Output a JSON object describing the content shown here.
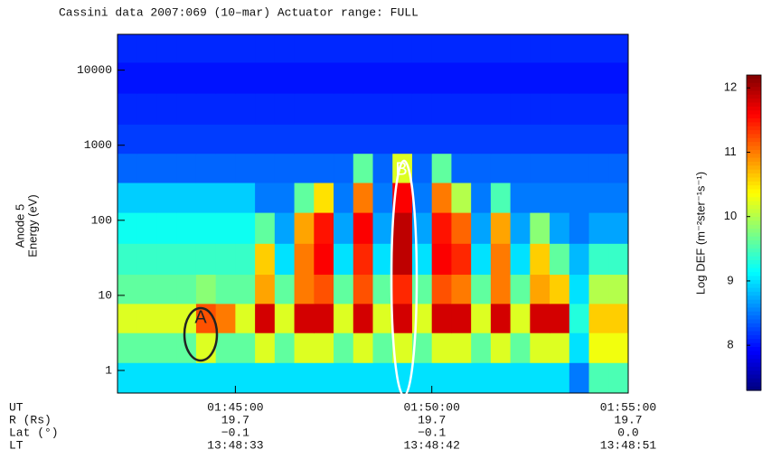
{
  "chart_data": {
    "type": "heatmap",
    "title": "Cassini data 2007:069 (10–mar)  Actuator range: FULL",
    "y_label": [
      "Anode 5",
      "Energy (eV)"
    ],
    "colorbar_label": "Log DEF (m⁻²ster⁻¹s⁻¹)",
    "log_y": true,
    "xlim": [
      "01:42:00",
      "01:55:00"
    ],
    "xticks": [
      "01:45:00",
      "01:50:00",
      "01:55:00"
    ],
    "ylim": [
      0.5,
      30000
    ],
    "yticks": [
      1,
      10,
      100,
      1000,
      10000
    ],
    "zlim": [
      7.3,
      12.2
    ],
    "zticks": [
      8,
      9,
      10,
      11,
      12
    ],
    "x": [
      "01:42:15",
      "01:42:45",
      "01:43:15",
      "01:43:45",
      "01:44:15",
      "01:44:45",
      "01:45:15",
      "01:45:45",
      "01:46:15",
      "01:46:45",
      "01:47:15",
      "01:47:45",
      "01:48:15",
      "01:48:45",
      "01:49:15",
      "01:49:45",
      "01:50:15",
      "01:50:45",
      "01:51:15",
      "01:51:45",
      "01:52:15",
      "01:52:45",
      "01:53:15",
      "01:53:45",
      "01:54:15",
      "01:54:45"
    ],
    "y": [
      0.8,
      2,
      5,
      12,
      30,
      80,
      200,
      500,
      1200,
      3000,
      8000,
      20000
    ],
    "values": [
      [
        9.0,
        9.0,
        9.0,
        9.0,
        9.0,
        9.0,
        9.0,
        9.0,
        9.0,
        9.0,
        9.0,
        9.0,
        9.0,
        9.0,
        9.0,
        9.0,
        9.0,
        9.0,
        9.0,
        9.0,
        9.0,
        9.0,
        9.0,
        8.5,
        9.5,
        9.5
      ],
      [
        9.6,
        9.6,
        9.6,
        9.6,
        10.2,
        9.6,
        9.6,
        10.2,
        9.6,
        10.2,
        10.2,
        9.6,
        10.2,
        9.6,
        10.2,
        9.6,
        10.2,
        10.2,
        9.6,
        10.2,
        9.6,
        10.2,
        10.2,
        9.0,
        10.3,
        10.3
      ],
      [
        10.2,
        10.2,
        10.2,
        10.2,
        11.2,
        11.0,
        10.2,
        11.8,
        10.2,
        11.8,
        11.8,
        10.2,
        11.8,
        10.2,
        11.8,
        10.2,
        11.8,
        11.8,
        10.2,
        11.8,
        10.2,
        11.8,
        11.8,
        9.3,
        10.6,
        10.6
      ],
      [
        9.6,
        9.6,
        9.6,
        9.6,
        9.8,
        9.6,
        9.6,
        10.8,
        9.6,
        11.0,
        11.2,
        9.6,
        11.2,
        9.6,
        11.4,
        9.6,
        11.2,
        11.0,
        9.6,
        11.0,
        9.6,
        10.8,
        10.6,
        9.0,
        10.0,
        10.0
      ],
      [
        9.4,
        9.4,
        9.4,
        9.4,
        9.4,
        9.4,
        9.4,
        10.6,
        9.0,
        11.0,
        11.6,
        9.0,
        11.4,
        9.0,
        11.9,
        9.0,
        11.6,
        11.4,
        9.0,
        11.0,
        9.0,
        10.6,
        9.6,
        8.8,
        9.4,
        9.4
      ],
      [
        9.2,
        9.2,
        9.2,
        9.2,
        9.2,
        9.2,
        9.2,
        9.6,
        8.7,
        10.8,
        11.5,
        8.7,
        11.6,
        8.7,
        11.9,
        8.7,
        11.5,
        11.1,
        8.7,
        10.8,
        8.7,
        9.8,
        8.7,
        8.5,
        8.7,
        8.7
      ],
      [
        8.9,
        8.9,
        8.9,
        8.9,
        8.9,
        8.9,
        8.9,
        8.5,
        8.5,
        9.6,
        10.5,
        8.5,
        11.0,
        8.5,
        11.6,
        8.5,
        11.0,
        10.0,
        8.5,
        9.5,
        8.5,
        8.5,
        8.5,
        8.5,
        8.5,
        8.5
      ],
      [
        8.4,
        8.4,
        8.4,
        8.4,
        8.4,
        8.4,
        8.4,
        8.4,
        8.4,
        8.4,
        8.4,
        8.4,
        9.6,
        8.4,
        10.2,
        8.4,
        9.6,
        8.4,
        8.4,
        8.4,
        8.4,
        8.4,
        8.4,
        8.4,
        8.4,
        8.4
      ],
      [
        8.2,
        8.2,
        8.2,
        8.2,
        8.2,
        8.2,
        8.2,
        8.2,
        8.2,
        8.2,
        8.2,
        8.2,
        8.2,
        8.2,
        8.2,
        8.2,
        8.2,
        8.2,
        8.2,
        8.2,
        8.2,
        8.2,
        8.2,
        8.2,
        8.2,
        8.2
      ],
      [
        8.1,
        8.1,
        8.1,
        8.1,
        8.1,
        8.1,
        8.1,
        8.1,
        8.1,
        8.1,
        8.1,
        8.1,
        8.1,
        8.1,
        8.1,
        8.1,
        8.1,
        8.1,
        8.1,
        8.1,
        8.1,
        8.1,
        8.1,
        8.1,
        8.1,
        8.1
      ],
      [
        8.0,
        8.0,
        8.0,
        8.0,
        8.0,
        8.0,
        8.0,
        8.0,
        8.0,
        8.0,
        8.0,
        8.0,
        8.0,
        8.0,
        8.0,
        8.0,
        8.0,
        8.0,
        8.0,
        8.0,
        8.0,
        8.0,
        8.0,
        8.0,
        8.0,
        8.0
      ],
      [
        8.1,
        8.1,
        8.1,
        8.1,
        8.1,
        8.1,
        8.1,
        8.1,
        8.1,
        8.1,
        8.1,
        8.1,
        8.1,
        8.1,
        8.1,
        8.1,
        8.1,
        8.1,
        8.1,
        8.1,
        8.1,
        8.1,
        8.1,
        8.1,
        8.1,
        8.1
      ]
    ],
    "annotations": [
      {
        "text": "A",
        "color": "#222222"
      },
      {
        "text": "B",
        "color": "#ffffff"
      }
    ],
    "ephemeris": {
      "labels": [
        "UT",
        "R (Rs)",
        "Lat (°)",
        "LT"
      ],
      "rows": [
        [
          "19.7",
          "19.7",
          "19.7"
        ],
        [
          "−0.1",
          "−0.1",
          "0.0"
        ],
        [
          "13:48:33",
          "13:48:42",
          "13:48:51"
        ]
      ]
    }
  }
}
